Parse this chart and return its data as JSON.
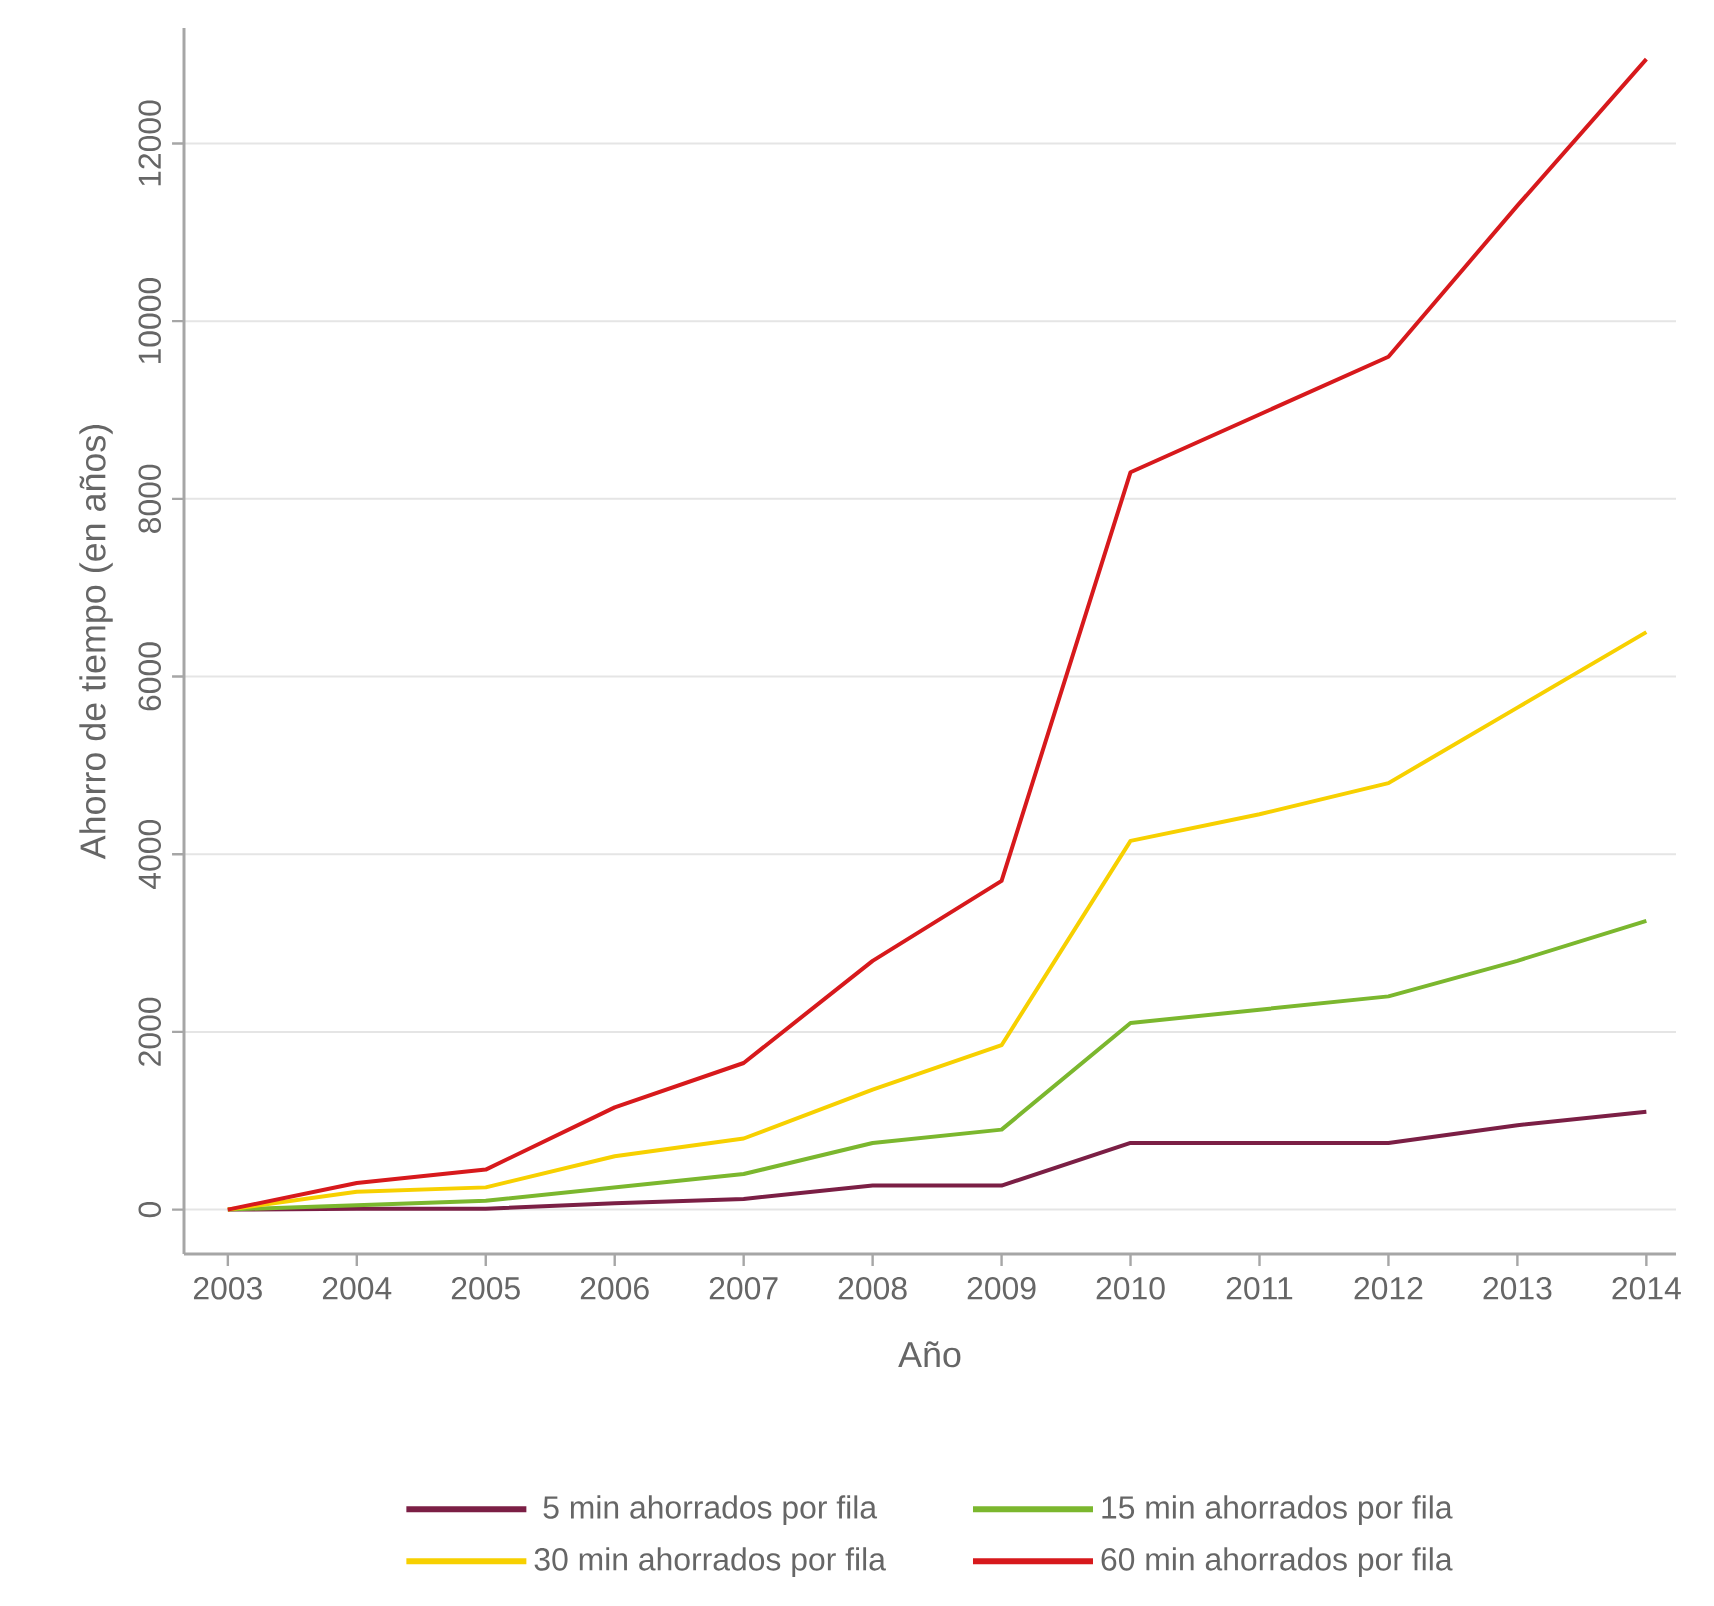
{
  "chart_data": {
    "type": "line",
    "xlabel": "Año",
    "ylabel": "Ahorro de tiempo (en años)",
    "x": [
      2003,
      2004,
      2005,
      2006,
      2007,
      2008,
      2009,
      2010,
      2011,
      2012,
      2013,
      2014
    ],
    "series": [
      {
        "name": "5 min ahorrados por fila",
        "color": "#7b1f45",
        "values": [
          0,
          10,
          10,
          70,
          120,
          270,
          270,
          750,
          750,
          750,
          950,
          1100
        ]
      },
      {
        "name": "15 min ahorrados por fila",
        "color": "#7bb72e",
        "values": [
          0,
          50,
          100,
          250,
          400,
          750,
          900,
          2100,
          2250,
          2400,
          2800,
          3250
        ]
      },
      {
        "name": "30 min ahorrados por fila",
        "color": "#f7d000",
        "values": [
          0,
          200,
          250,
          600,
          800,
          1350,
          1850,
          4150,
          4450,
          4800,
          5650,
          6500
        ]
      },
      {
        "name": "60 min ahorrados por fila",
        "color": "#d7191c",
        "values": [
          0,
          300,
          450,
          1150,
          1650,
          2800,
          3700,
          8300,
          8950,
          9600,
          11300,
          12950
        ]
      }
    ],
    "xlim": [
      2002.66,
      2014.23
    ],
    "ylim": [
      -500,
      13300
    ],
    "xticks": [
      2003,
      2004,
      2005,
      2006,
      2007,
      2008,
      2009,
      2010,
      2011,
      2012,
      2013,
      2014
    ],
    "yticks": [
      0,
      2000,
      4000,
      6000,
      8000,
      10000,
      12000
    ],
    "grid": "y",
    "legend": "bottom"
  }
}
